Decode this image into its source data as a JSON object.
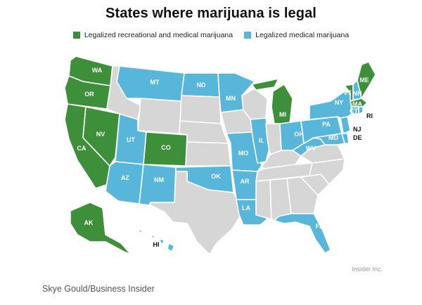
{
  "title": "States where marijuana is legal",
  "legend": {
    "recreational_label": "Legalized recreational and medical marijuana",
    "medical_label": "Legalized medical marijuana"
  },
  "colors": {
    "recreational": "#3d8f3a",
    "medical": "#57b6d9",
    "not_legal": "#d6d6d6"
  },
  "map_data": {
    "recreational": [
      "WA",
      "OR",
      "CA",
      "NV",
      "CO",
      "AK",
      "MI",
      "ME",
      "VT",
      "MA"
    ],
    "medical": [
      "MT",
      "ND",
      "MN",
      "UT",
      "AZ",
      "NM",
      "OK",
      "MO",
      "AR",
      "LA",
      "IL",
      "OH",
      "WV",
      "PA",
      "NY",
      "NH",
      "CT",
      "RI",
      "NJ",
      "DE",
      "MD",
      "FL",
      "HI"
    ],
    "not_legal": [
      "ID",
      "WY",
      "SD",
      "NE",
      "KS",
      "TX",
      "IA",
      "WI",
      "IN",
      "KY",
      "TN",
      "MS",
      "AL",
      "GA",
      "SC",
      "NC",
      "VA"
    ]
  },
  "state_labels": {
    "WA": "WA",
    "OR": "OR",
    "CA": "CA",
    "NV": "NV",
    "CO": "CO",
    "AK": "AK",
    "MI": "MI",
    "ME": "ME",
    "VT": "VT",
    "MA": "MA",
    "MT": "MT",
    "ND": "ND",
    "MN": "MN",
    "UT": "UT",
    "AZ": "AZ",
    "NM": "NM",
    "OK": "OK",
    "MO": "MO",
    "AR": "AR",
    "LA": "LA",
    "IL": "IL",
    "OH": "OH",
    "WV": "WV",
    "PA": "PA",
    "NY": "NY",
    "NH": "NH",
    "CT": "CT",
    "RI": "RI",
    "NJ": "NJ",
    "DE": "DE",
    "MD": "MD",
    "FL": "FL",
    "HI": "HI"
  },
  "brand": "Insider Inc.",
  "credit": "Skye Gould/Business Insider"
}
